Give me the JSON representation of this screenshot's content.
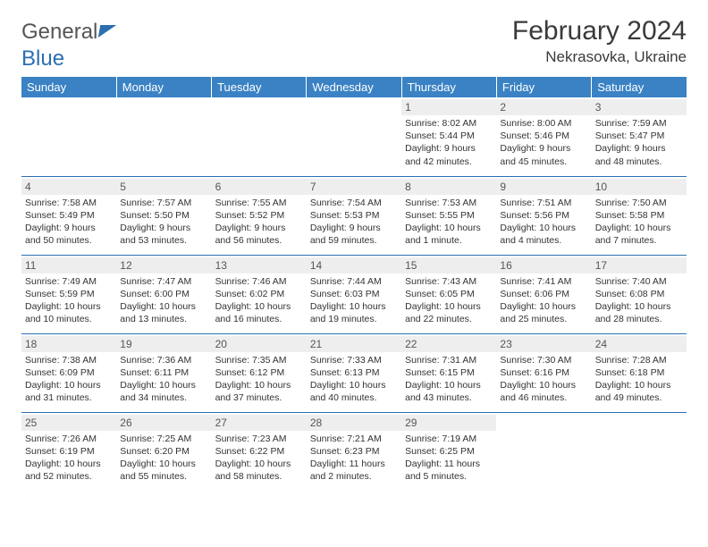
{
  "logo": {
    "part1": "General",
    "part2": "Blue"
  },
  "title": "February 2024",
  "location": "Nekrasovka, Ukraine",
  "header_bg": "#3a82c4",
  "rule_color": "#2b6fb0",
  "daynum_bg": "#eeeeee",
  "weekdays": [
    "Sunday",
    "Monday",
    "Tuesday",
    "Wednesday",
    "Thursday",
    "Friday",
    "Saturday"
  ],
  "weeks": [
    [
      null,
      null,
      null,
      null,
      {
        "n": "1",
        "sr": "8:02 AM",
        "ss": "5:44 PM",
        "dl": "9 hours and 42 minutes."
      },
      {
        "n": "2",
        "sr": "8:00 AM",
        "ss": "5:46 PM",
        "dl": "9 hours and 45 minutes."
      },
      {
        "n": "3",
        "sr": "7:59 AM",
        "ss": "5:47 PM",
        "dl": "9 hours and 48 minutes."
      }
    ],
    [
      {
        "n": "4",
        "sr": "7:58 AM",
        "ss": "5:49 PM",
        "dl": "9 hours and 50 minutes."
      },
      {
        "n": "5",
        "sr": "7:57 AM",
        "ss": "5:50 PM",
        "dl": "9 hours and 53 minutes."
      },
      {
        "n": "6",
        "sr": "7:55 AM",
        "ss": "5:52 PM",
        "dl": "9 hours and 56 minutes."
      },
      {
        "n": "7",
        "sr": "7:54 AM",
        "ss": "5:53 PM",
        "dl": "9 hours and 59 minutes."
      },
      {
        "n": "8",
        "sr": "7:53 AM",
        "ss": "5:55 PM",
        "dl": "10 hours and 1 minute."
      },
      {
        "n": "9",
        "sr": "7:51 AM",
        "ss": "5:56 PM",
        "dl": "10 hours and 4 minutes."
      },
      {
        "n": "10",
        "sr": "7:50 AM",
        "ss": "5:58 PM",
        "dl": "10 hours and 7 minutes."
      }
    ],
    [
      {
        "n": "11",
        "sr": "7:49 AM",
        "ss": "5:59 PM",
        "dl": "10 hours and 10 minutes."
      },
      {
        "n": "12",
        "sr": "7:47 AM",
        "ss": "6:00 PM",
        "dl": "10 hours and 13 minutes."
      },
      {
        "n": "13",
        "sr": "7:46 AM",
        "ss": "6:02 PM",
        "dl": "10 hours and 16 minutes."
      },
      {
        "n": "14",
        "sr": "7:44 AM",
        "ss": "6:03 PM",
        "dl": "10 hours and 19 minutes."
      },
      {
        "n": "15",
        "sr": "7:43 AM",
        "ss": "6:05 PM",
        "dl": "10 hours and 22 minutes."
      },
      {
        "n": "16",
        "sr": "7:41 AM",
        "ss": "6:06 PM",
        "dl": "10 hours and 25 minutes."
      },
      {
        "n": "17",
        "sr": "7:40 AM",
        "ss": "6:08 PM",
        "dl": "10 hours and 28 minutes."
      }
    ],
    [
      {
        "n": "18",
        "sr": "7:38 AM",
        "ss": "6:09 PM",
        "dl": "10 hours and 31 minutes."
      },
      {
        "n": "19",
        "sr": "7:36 AM",
        "ss": "6:11 PM",
        "dl": "10 hours and 34 minutes."
      },
      {
        "n": "20",
        "sr": "7:35 AM",
        "ss": "6:12 PM",
        "dl": "10 hours and 37 minutes."
      },
      {
        "n": "21",
        "sr": "7:33 AM",
        "ss": "6:13 PM",
        "dl": "10 hours and 40 minutes."
      },
      {
        "n": "22",
        "sr": "7:31 AM",
        "ss": "6:15 PM",
        "dl": "10 hours and 43 minutes."
      },
      {
        "n": "23",
        "sr": "7:30 AM",
        "ss": "6:16 PM",
        "dl": "10 hours and 46 minutes."
      },
      {
        "n": "24",
        "sr": "7:28 AM",
        "ss": "6:18 PM",
        "dl": "10 hours and 49 minutes."
      }
    ],
    [
      {
        "n": "25",
        "sr": "7:26 AM",
        "ss": "6:19 PM",
        "dl": "10 hours and 52 minutes."
      },
      {
        "n": "26",
        "sr": "7:25 AM",
        "ss": "6:20 PM",
        "dl": "10 hours and 55 minutes."
      },
      {
        "n": "27",
        "sr": "7:23 AM",
        "ss": "6:22 PM",
        "dl": "10 hours and 58 minutes."
      },
      {
        "n": "28",
        "sr": "7:21 AM",
        "ss": "6:23 PM",
        "dl": "11 hours and 2 minutes."
      },
      {
        "n": "29",
        "sr": "7:19 AM",
        "ss": "6:25 PM",
        "dl": "11 hours and 5 minutes."
      },
      null,
      null
    ]
  ],
  "labels": {
    "sunrise": "Sunrise: ",
    "sunset": "Sunset: ",
    "daylight": "Daylight: "
  }
}
